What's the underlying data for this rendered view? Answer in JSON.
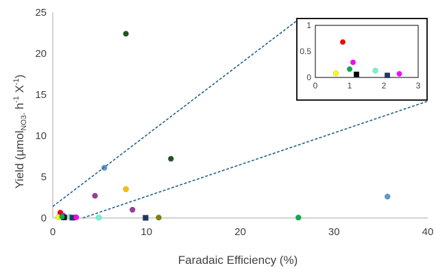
{
  "chart_data": [
    {
      "type": "scatter",
      "title": "",
      "xlabel": "Faradaic Efficiency (%)",
      "ylabel": {
        "prefix": "Yield (µmol",
        "sub": "NO3-",
        "mid": " h",
        "sup1": "-1",
        "mid2": " X",
        "sup2": "-1",
        "suffix": ")"
      },
      "xlim": [
        0,
        40
      ],
      "ylim": [
        0,
        25
      ],
      "xticks": [
        0,
        10,
        20,
        30,
        40
      ],
      "yticks": [
        0,
        5,
        10,
        15,
        20,
        25
      ],
      "grid": false,
      "points": [
        {
          "x": 7.8,
          "y": 22.4,
          "color": "#1e5620",
          "marker": "circle"
        },
        {
          "x": 12.6,
          "y": 7.2,
          "color": "#1e5620",
          "marker": "circle"
        },
        {
          "x": 5.5,
          "y": 6.1,
          "color": "#5b9bd5",
          "marker": "circle"
        },
        {
          "x": 7.8,
          "y": 3.5,
          "color": "#ffc000",
          "marker": "circle"
        },
        {
          "x": 4.5,
          "y": 2.7,
          "color": "#993d99",
          "marker": "circle"
        },
        {
          "x": 8.5,
          "y": 1.0,
          "color": "#993d99",
          "marker": "circle"
        },
        {
          "x": 35.7,
          "y": 2.6,
          "color": "#5b9bd5",
          "marker": "circle"
        },
        {
          "x": 0.8,
          "y": 0.65,
          "color": "#ff0000",
          "marker": "circle"
        },
        {
          "x": 0.6,
          "y": 0.1,
          "color": "#ffff00",
          "marker": "circle"
        },
        {
          "x": 1.1,
          "y": 0.3,
          "color": "#ff00ff",
          "marker": "circle"
        },
        {
          "x": 1.2,
          "y": 0.07,
          "color": "#000000",
          "marker": "square"
        },
        {
          "x": 1.0,
          "y": 0.15,
          "color": "#00b050",
          "marker": "circle"
        },
        {
          "x": 1.8,
          "y": 0.12,
          "color": "#66ffcc",
          "marker": "circle"
        },
        {
          "x": 2.1,
          "y": 0.04,
          "color": "#203864",
          "marker": "square"
        },
        {
          "x": 2.5,
          "y": 0.08,
          "color": "#ff00ff",
          "marker": "circle"
        },
        {
          "x": 4.9,
          "y": 0.05,
          "color": "#66ffcc",
          "marker": "circle"
        },
        {
          "x": 9.9,
          "y": 0.02,
          "color": "#203864",
          "marker": "square"
        },
        {
          "x": 11.3,
          "y": 0.05,
          "color": "#808000",
          "marker": "circle"
        },
        {
          "x": 26.2,
          "y": 0.05,
          "color": "#00b050",
          "marker": "circle"
        }
      ],
      "zoom_lines": [
        {
          "from": [
            0,
            1.4
          ],
          "to": [
            26.4,
            24.3
          ]
        },
        {
          "from": [
            3.2,
            0
          ],
          "to": [
            40,
            14.2
          ]
        }
      ],
      "zoom_line_color": "#1f5f8b"
    },
    {
      "type": "scatter",
      "title": "",
      "xlabel": "",
      "ylabel": "",
      "xlim": [
        0,
        3
      ],
      "ylim": [
        0,
        1
      ],
      "xticks": [
        0,
        1,
        2,
        3
      ],
      "yticks": [
        0,
        0.5,
        1
      ],
      "grid": false,
      "points": [
        {
          "x": 0.8,
          "y": 0.68,
          "color": "#ff0000",
          "marker": "circle"
        },
        {
          "x": 1.1,
          "y": 0.29,
          "color": "#ff00ff",
          "marker": "circle"
        },
        {
          "x": 1.0,
          "y": 0.16,
          "color": "#00b050",
          "marker": "circle"
        },
        {
          "x": 1.75,
          "y": 0.13,
          "color": "#66ffcc",
          "marker": "circle"
        },
        {
          "x": 0.6,
          "y": 0.08,
          "color": "#ffff00",
          "marker": "circle"
        },
        {
          "x": 1.2,
          "y": 0.06,
          "color": "#000000",
          "marker": "square"
        },
        {
          "x": 2.45,
          "y": 0.07,
          "color": "#ff00ff",
          "marker": "circle"
        },
        {
          "x": 2.1,
          "y": 0.04,
          "color": "#203864",
          "marker": "square"
        }
      ]
    }
  ]
}
